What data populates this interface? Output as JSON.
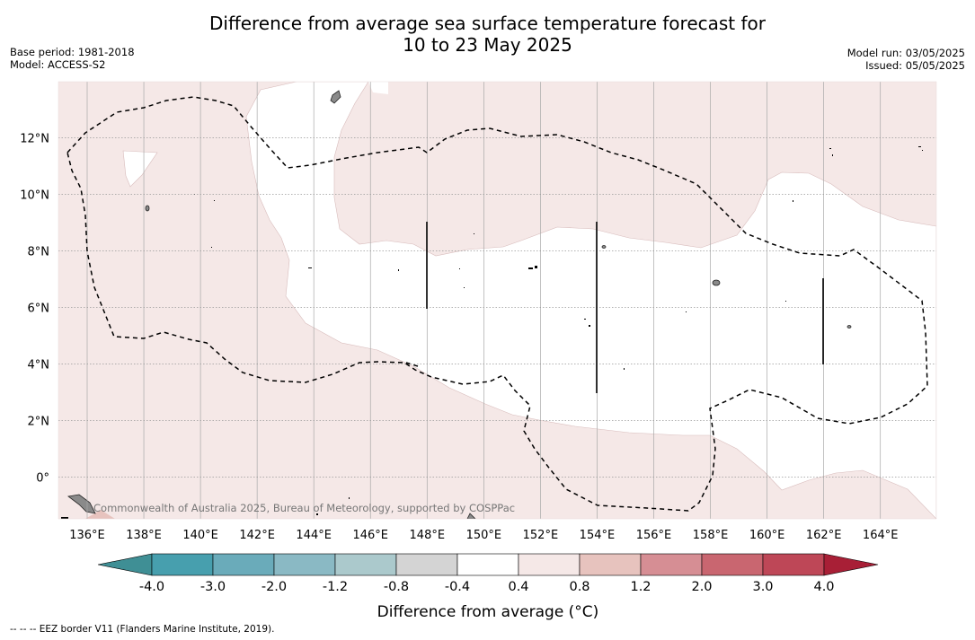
{
  "title_line1": "Difference from average sea surface temperature forecast for",
  "title_line2": "10 to 23 May 2025",
  "base_period": "Base period: 1981-2018",
  "model": "Model: ACCESS-S2",
  "model_run": "Model run: 03/05/2025",
  "issued": "Issued: 05/05/2025",
  "map": {
    "lon_labels": [
      "136°E",
      "138°E",
      "140°E",
      "142°E",
      "144°E",
      "146°E",
      "148°E",
      "150°E",
      "152°E",
      "154°E",
      "156°E",
      "158°E",
      "160°E",
      "162°E",
      "164°E"
    ],
    "lat_labels": [
      "12°N",
      "10°N",
      "8°N",
      "6°N",
      "4°N",
      "2°N",
      "0°"
    ],
    "copyright": "Commonwealth of Australia 2025, Bureau of Meteorology, supported by COSPPac",
    "warm_anomaly_color": "#f5e8e7"
  },
  "colorbar": {
    "tick_labels": [
      "-4.0",
      "-3.0",
      "-2.0",
      "-1.2",
      "-0.8",
      "-0.4",
      "0.4",
      "0.8",
      "1.2",
      "2.0",
      "3.0",
      "4.0"
    ],
    "colors": [
      "#3f8f95",
      "#479fae",
      "#6aabba",
      "#8ab9c4",
      "#abc9cc",
      "#d4d4d4",
      "#ffffff",
      "#f5e8e7",
      "#e7c3be",
      "#d68e94",
      "#c96670",
      "#be4757",
      "#a81f36"
    ],
    "label": "Difference from average (°C)"
  },
  "legend_note": "--  --  -- EEZ border V11 (Flanders Marine Institute, 2019)."
}
